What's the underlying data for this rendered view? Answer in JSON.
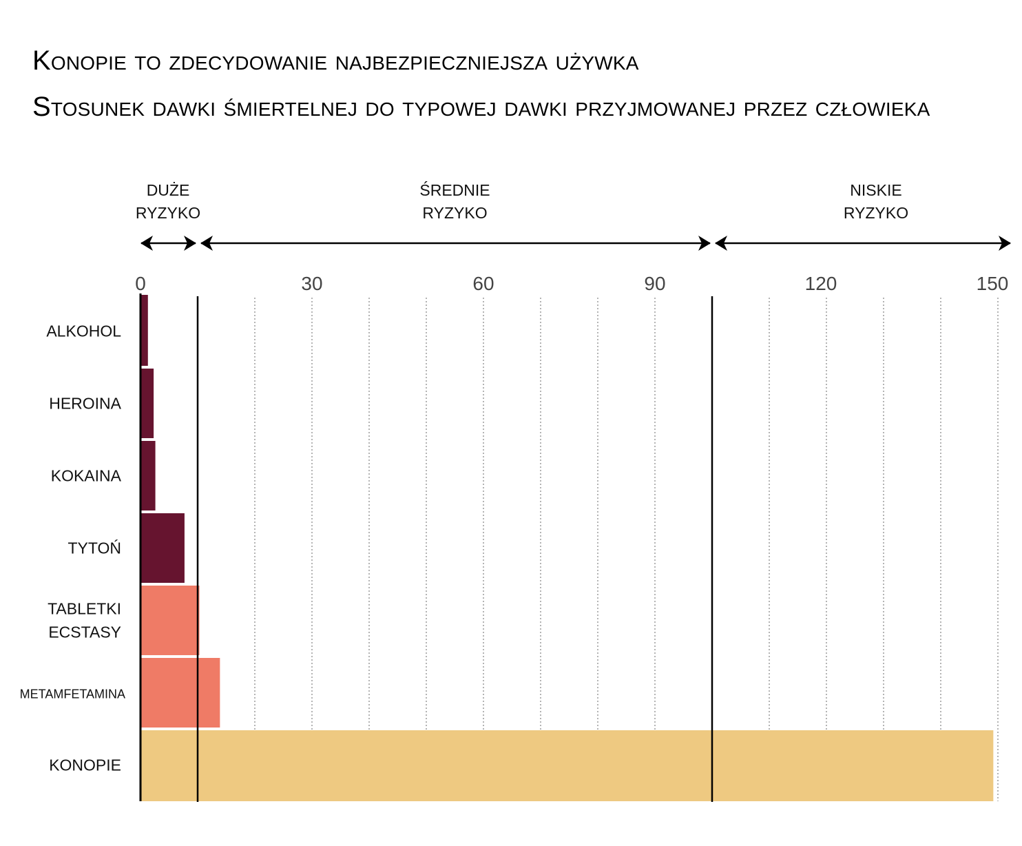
{
  "title": "Konopie to zdecydowanie najbezpieczniejsza używka",
  "subtitle": "Stosunek dawki śmiertelnej do typowej dawki przyjmowanej przez człowieka",
  "chart_data": {
    "type": "bar",
    "orientation": "horizontal",
    "title": "Konopie to zdecydowanie najbezpieczniejsza używka",
    "subtitle": "Stosunek dawki śmiertelnej do typowej dawki przyjmowanej przez człowieka",
    "xlabel": "",
    "ylabel": "",
    "xlim": [
      0,
      150
    ],
    "xticks": [
      0,
      30,
      60,
      90,
      120,
      150
    ],
    "grid": "vertical dotted every 10",
    "categories": [
      {
        "label": [
          "ALKOHOL"
        ],
        "value": 1.3,
        "color": "#66142f"
      },
      {
        "label": [
          "HEROINA"
        ],
        "value": 2.3,
        "color": "#66142f"
      },
      {
        "label": [
          "KOKAINA"
        ],
        "value": 2.6,
        "color": "#66142f"
      },
      {
        "label": [
          "TYTOŃ"
        ],
        "value": 7.7,
        "color": "#66142f"
      },
      {
        "label": [
          "TABLETKI",
          "ECSTASY"
        ],
        "value": 10.3,
        "color": "#ef7b66"
      },
      {
        "label": [
          "METAMFETAMINA"
        ],
        "value": 13.9,
        "color": "#ef7b66",
        "small": true
      },
      {
        "label": [
          "KONOPIE"
        ],
        "value": 149.2,
        "color": "#eec981"
      }
    ],
    "risk_zones": [
      {
        "label": [
          "DUŻE",
          "RYZYKO"
        ],
        "from": 0,
        "to": 10
      },
      {
        "label": [
          "ŚREDNIE",
          "RYZYKO"
        ],
        "from": 10,
        "to": 100
      },
      {
        "label": [
          "NISKIE",
          "RYZYKO"
        ],
        "from": 100,
        "to": 150
      }
    ],
    "threshold_lines": [
      10,
      100
    ],
    "legend": "none"
  }
}
